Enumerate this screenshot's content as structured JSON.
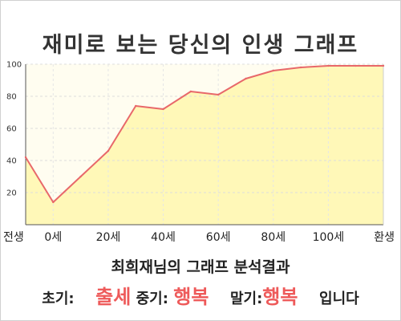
{
  "chart_data": {
    "type": "area",
    "title": "재미로 보는 당신의 인생 그래프",
    "x": [
      "전생",
      "0세",
      "10세",
      "20세",
      "30세",
      "40세",
      "50세",
      "60세",
      "70세",
      "80세",
      "90세",
      "100세",
      "110세",
      "환생"
    ],
    "y": [
      42,
      14,
      30,
      46,
      74,
      72,
      83,
      81,
      91,
      96,
      98,
      99,
      99,
      99
    ],
    "x_tick_labels": [
      "전생",
      "0세",
      "20세",
      "40세",
      "60세",
      "80세",
      "100세",
      "환생"
    ],
    "y_ticks": [
      20,
      40,
      60,
      80,
      100
    ],
    "ylim": [
      0,
      100
    ],
    "grid": true,
    "line_color": "#e8686a",
    "fill_color": "#fff8b8"
  },
  "result": {
    "subtitle": "최희재님의 그래프 분석결과",
    "early_label": "초기:",
    "early_value": "출세",
    "middle_label": "중기:",
    "middle_value": "행복",
    "late_label": "말기:",
    "late_value": "행복",
    "ending": "입니다"
  }
}
